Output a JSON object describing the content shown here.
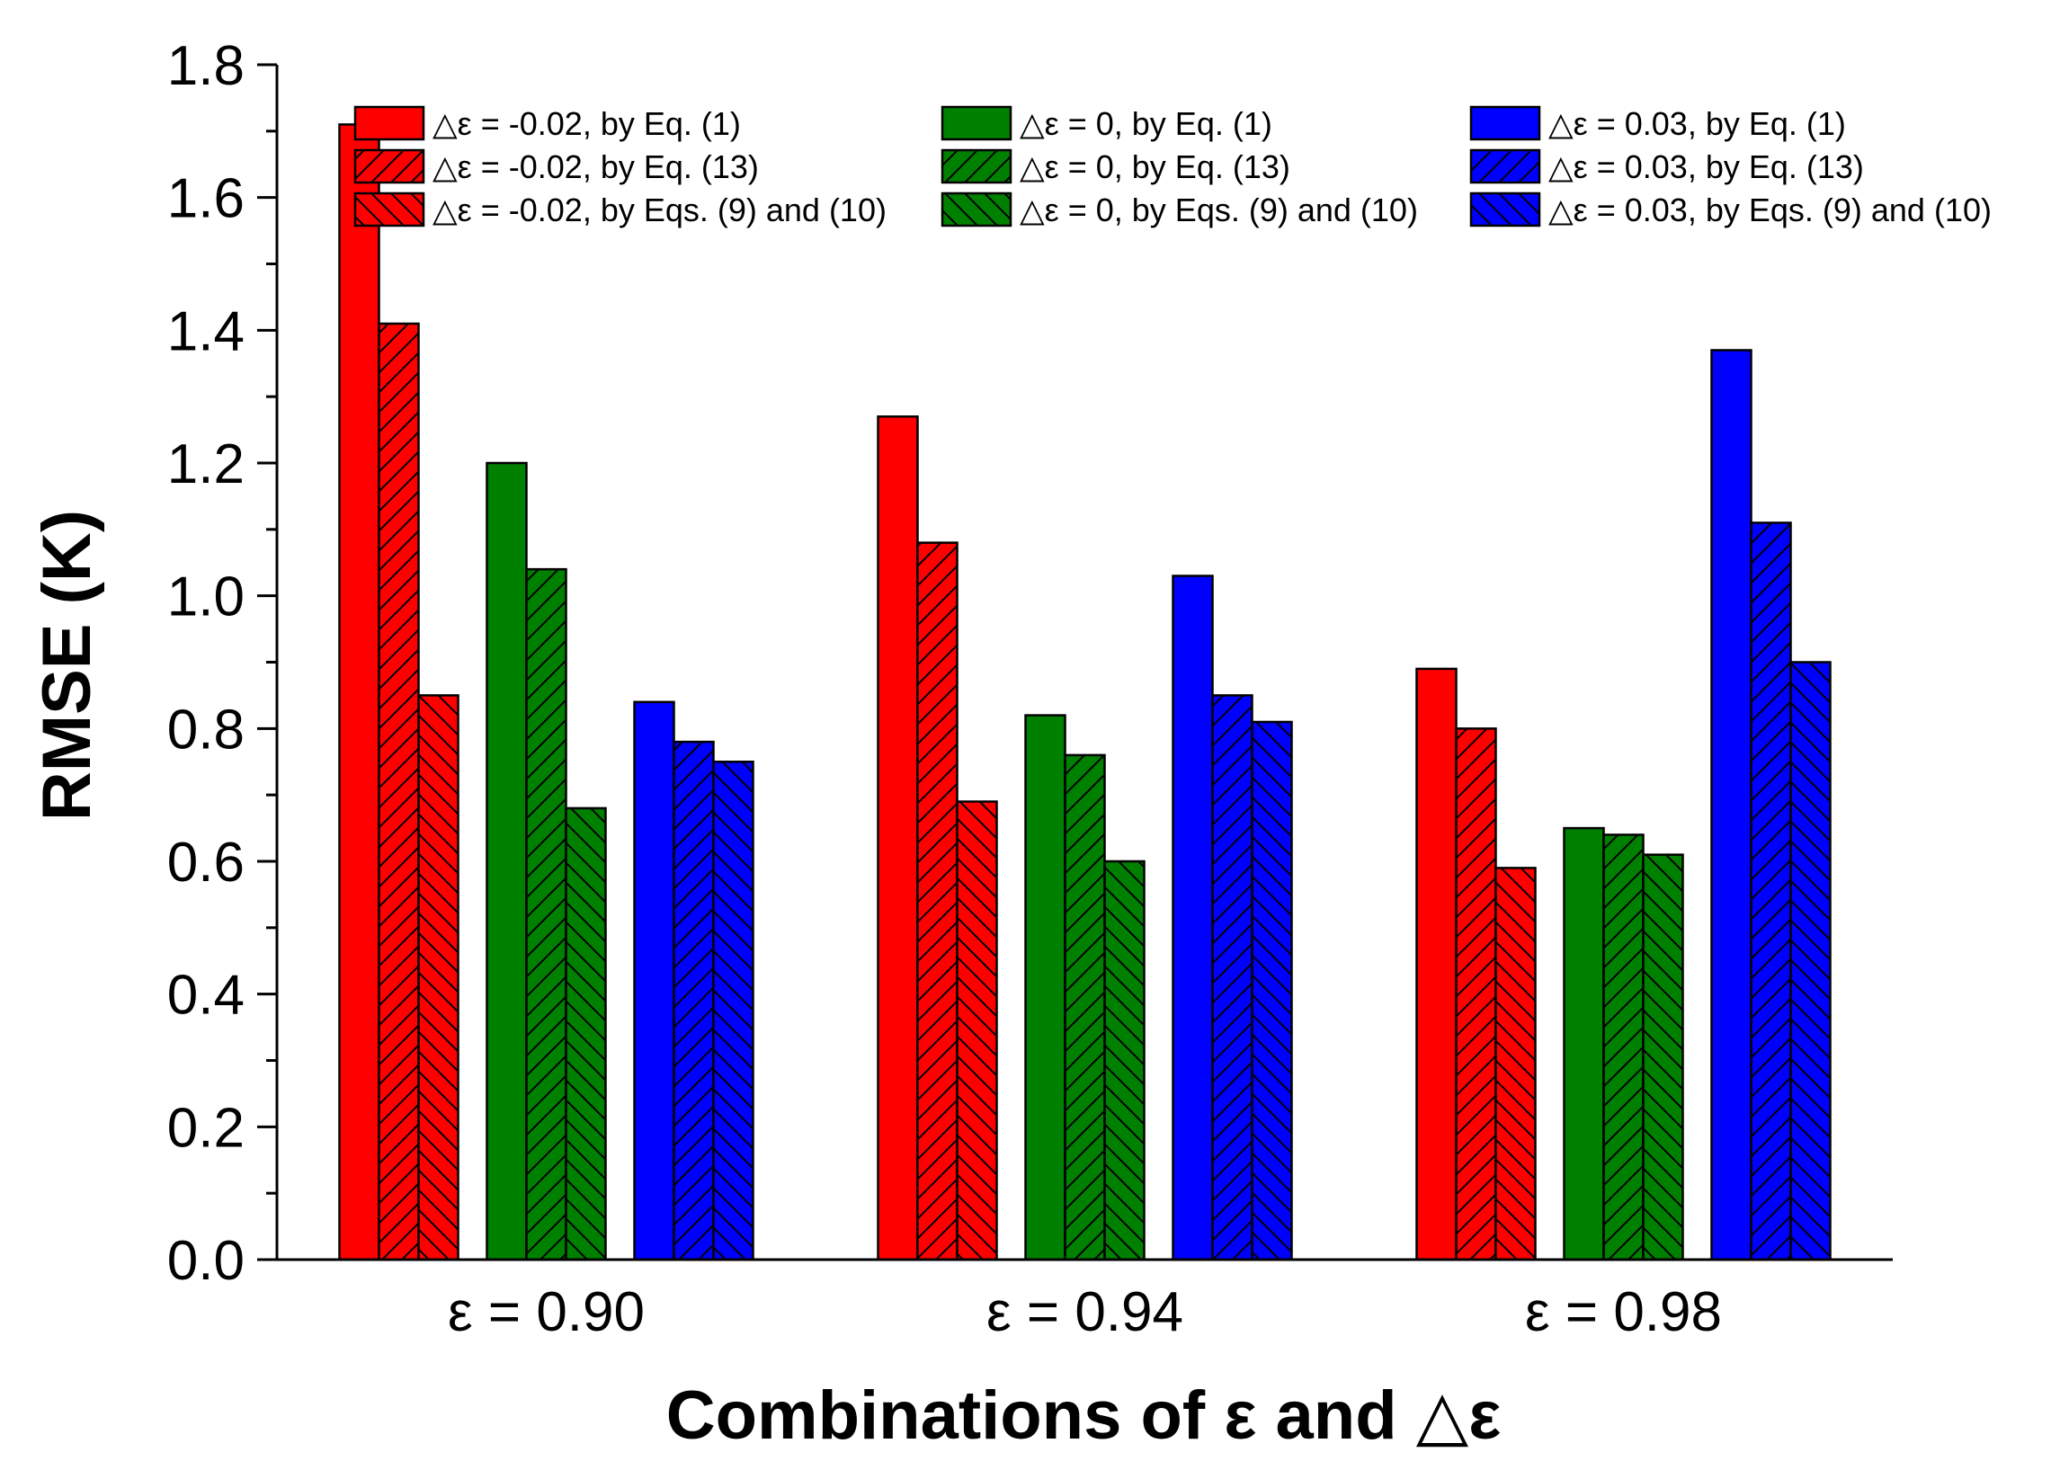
{
  "chart_data": {
    "type": "bar",
    "title": "",
    "xlabel": "Combinations of ε and △ε",
    "ylabel": "RMSE (K)",
    "ylim": [
      0,
      1.8
    ],
    "yticks": [
      "0.0",
      "0.2",
      "0.4",
      "0.6",
      "0.8",
      "1.0",
      "1.2",
      "1.4",
      "1.6",
      "1.8"
    ],
    "categories": [
      "ε = 0.90",
      "ε = 0.94",
      "ε = 0.98"
    ],
    "legend_position": "top",
    "series": [
      {
        "name": "△ε = -0.02, by Eq. (1)",
        "color": "#ff0000",
        "pattern": "solid",
        "values": [
          1.71,
          1.27,
          0.89
        ]
      },
      {
        "name": "△ε = -0.02, by Eq. (13)",
        "color": "#ff0000",
        "pattern": "forward-hatch",
        "values": [
          1.41,
          1.08,
          0.8
        ]
      },
      {
        "name": "△ε = -0.02, by Eqs. (9) and (10)",
        "color": "#ff0000",
        "pattern": "back-hatch",
        "values": [
          0.85,
          0.69,
          0.59
        ]
      },
      {
        "name": "△ε = 0, by Eq. (1)",
        "color": "#008000",
        "pattern": "solid",
        "values": [
          1.2,
          0.82,
          0.65
        ]
      },
      {
        "name": "△ε = 0, by Eq. (13)",
        "color": "#008000",
        "pattern": "forward-hatch",
        "values": [
          1.04,
          0.76,
          0.64
        ]
      },
      {
        "name": "△ε = 0, by Eqs. (9) and (10)",
        "color": "#008000",
        "pattern": "back-hatch",
        "values": [
          0.68,
          0.6,
          0.61
        ]
      },
      {
        "name": "△ε = 0.03, by Eq. (1)",
        "color": "#0000ff",
        "pattern": "solid",
        "values": [
          0.84,
          1.03,
          1.37
        ]
      },
      {
        "name": "△ε = 0.03, by Eq. (13)",
        "color": "#0000ff",
        "pattern": "forward-hatch",
        "values": [
          0.78,
          0.85,
          1.11
        ]
      },
      {
        "name": "△ε = 0.03, by Eqs. (9) and (10)",
        "color": "#0000ff",
        "pattern": "back-hatch",
        "values": [
          0.75,
          0.81,
          0.9
        ]
      }
    ]
  }
}
